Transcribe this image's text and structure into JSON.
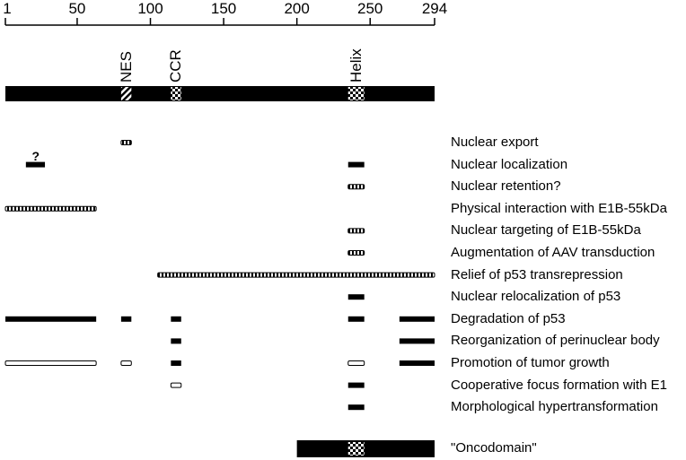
{
  "axis": {
    "ticks": [
      {
        "label": "1",
        "value": 1
      },
      {
        "label": "50",
        "value": 50
      },
      {
        "label": "100",
        "value": 100
      },
      {
        "label": "150",
        "value": 150
      },
      {
        "label": "200",
        "value": 200
      },
      {
        "label": "250",
        "value": 250
      },
      {
        "label": "294",
        "value": 294
      }
    ]
  },
  "domains": [
    {
      "label": "NES",
      "start": 80,
      "end": 87,
      "pattern": "hatched"
    },
    {
      "label": "CCR",
      "start": 114,
      "end": 121,
      "pattern": "checkered"
    },
    {
      "label": "Helix",
      "start": 235,
      "end": 246,
      "pattern": "checkered"
    }
  ],
  "functions": [
    {
      "label": "Nuclear export",
      "segments": [
        {
          "start": 80,
          "end": 87,
          "style": "dotted"
        }
      ]
    },
    {
      "label": "Nuclear localization",
      "segments": [
        {
          "start": 15,
          "end": 28,
          "style": "solid",
          "note": "?"
        },
        {
          "start": 235,
          "end": 246,
          "style": "solid"
        }
      ]
    },
    {
      "label": "Nuclear retention?",
      "segments": [
        {
          "start": 235,
          "end": 246,
          "style": "dotted"
        }
      ]
    },
    {
      "label": "Physical interaction with E1B-55kDa",
      "segments": [
        {
          "start": 1,
          "end": 63,
          "style": "dotted"
        }
      ]
    },
    {
      "label": "Nuclear targeting of E1B-55kDa",
      "segments": [
        {
          "start": 235,
          "end": 246,
          "style": "dotted"
        }
      ]
    },
    {
      "label": "Augmentation of AAV transduction",
      "segments": [
        {
          "start": 235,
          "end": 246,
          "style": "dotted"
        }
      ]
    },
    {
      "label": "Relief of p53 transrepression",
      "segments": [
        {
          "start": 105,
          "end": 294,
          "style": "dotted"
        }
      ]
    },
    {
      "label": "Nuclear relocalization of p53",
      "segments": [
        {
          "start": 235,
          "end": 246,
          "style": "solid"
        }
      ]
    },
    {
      "label": "Degradation of p53",
      "segments": [
        {
          "start": 1,
          "end": 63,
          "style": "solid"
        },
        {
          "start": 80,
          "end": 87,
          "style": "solid"
        },
        {
          "start": 114,
          "end": 121,
          "style": "solid"
        },
        {
          "start": 235,
          "end": 246,
          "style": "solid"
        },
        {
          "start": 270,
          "end": 294,
          "style": "solid"
        }
      ]
    },
    {
      "label": "Reorganization of perinuclear body",
      "segments": [
        {
          "start": 114,
          "end": 121,
          "style": "solid"
        },
        {
          "start": 270,
          "end": 294,
          "style": "solid"
        }
      ]
    },
    {
      "label": "Promotion of tumor growth",
      "segments": [
        {
          "start": 1,
          "end": 63,
          "style": "open"
        },
        {
          "start": 80,
          "end": 87,
          "style": "open"
        },
        {
          "start": 114,
          "end": 121,
          "style": "solid"
        },
        {
          "start": 235,
          "end": 246,
          "style": "open"
        },
        {
          "start": 270,
          "end": 294,
          "style": "solid"
        }
      ]
    },
    {
      "label": "Cooperative focus formation with E1",
      "segments": [
        {
          "start": 114,
          "end": 121,
          "style": "open"
        },
        {
          "start": 235,
          "end": 246,
          "style": "solid"
        }
      ]
    },
    {
      "label": "Morphological hypertransformation",
      "segments": [
        {
          "start": 235,
          "end": 246,
          "style": "solid"
        }
      ]
    }
  ],
  "oncodomain": {
    "label": "\"Oncodomain\"",
    "start": 200,
    "end": 294,
    "pattern_start": 235,
    "pattern_end": 246
  }
}
